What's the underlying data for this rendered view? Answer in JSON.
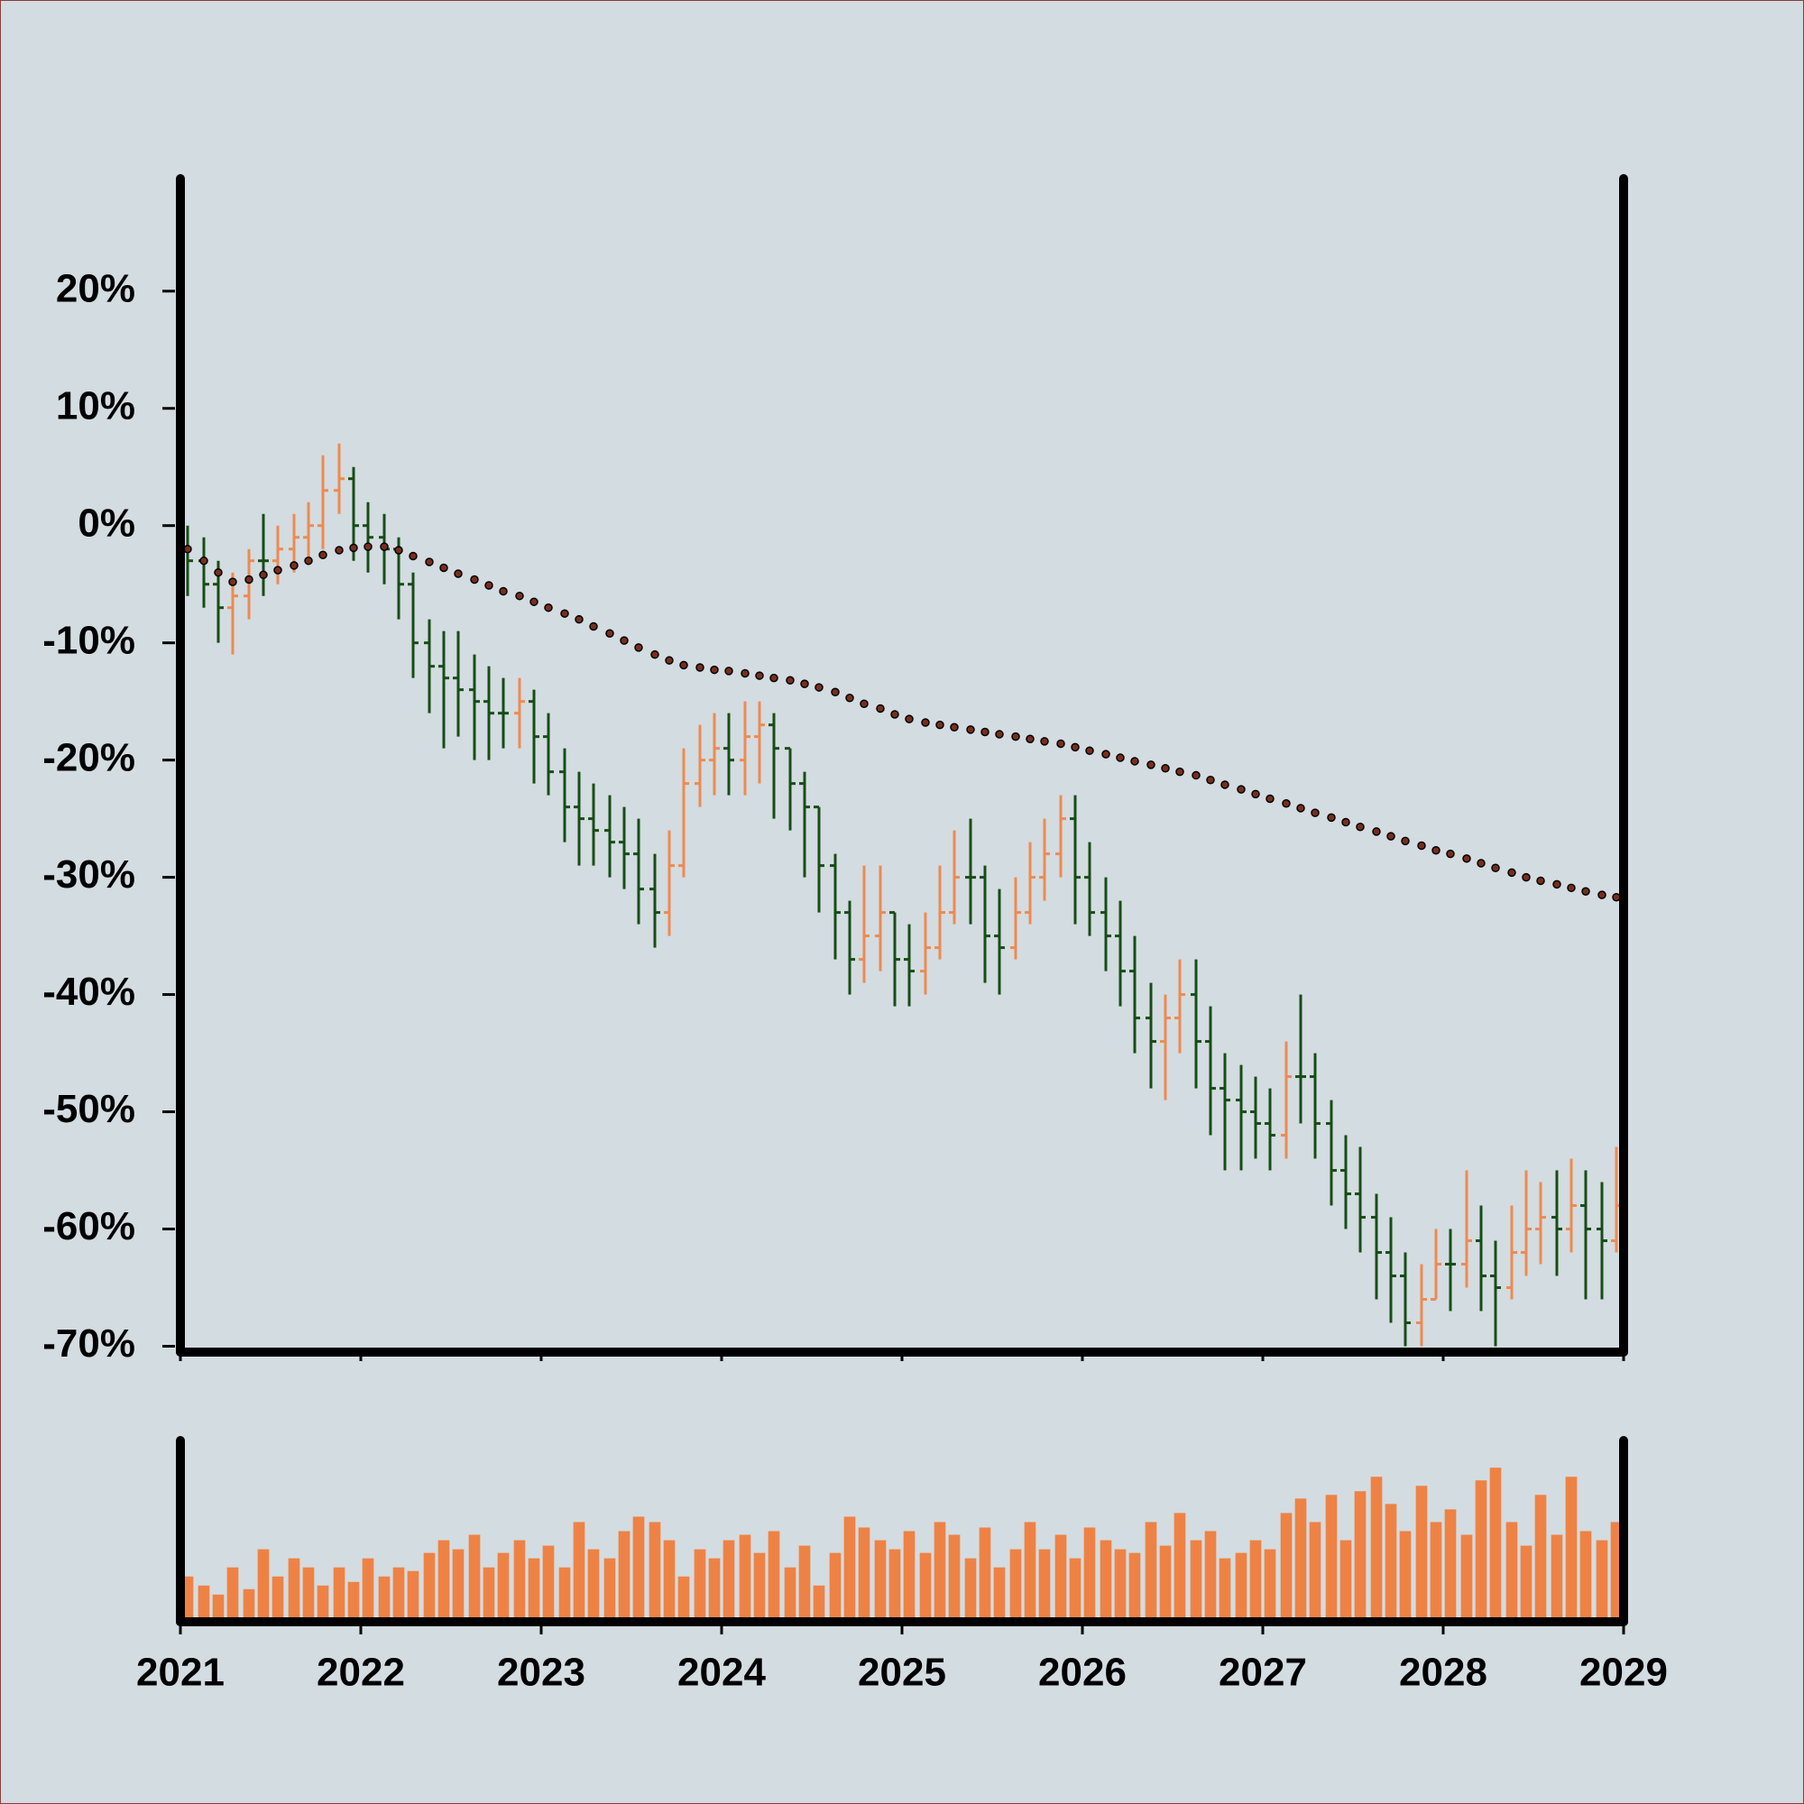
{
  "chart_data": {
    "type": "ohlc",
    "x": [
      2021.04,
      2021.13,
      2021.21,
      2021.29,
      2021.38,
      2021.46,
      2021.54,
      2021.63,
      2021.71,
      2021.79,
      2021.88,
      2021.96,
      2022.04,
      2022.13,
      2022.21,
      2022.29,
      2022.38,
      2022.46,
      2022.54,
      2022.63,
      2022.71,
      2022.79,
      2022.88,
      2022.96,
      2023.04,
      2023.13,
      2023.21,
      2023.29,
      2023.38,
      2023.46,
      2023.54,
      2023.63,
      2023.71,
      2023.79,
      2023.88,
      2023.96,
      2024.04,
      2024.13,
      2024.21,
      2024.29,
      2024.38,
      2024.46,
      2024.54,
      2024.63,
      2024.71,
      2024.79,
      2024.88,
      2024.96,
      2025.04,
      2025.13,
      2025.21,
      2025.29,
      2025.38,
      2025.46,
      2025.54,
      2025.63,
      2025.71,
      2025.79,
      2025.88,
      2025.96,
      2026.04,
      2026.13,
      2026.21,
      2026.29,
      2026.38,
      2026.46,
      2026.54,
      2026.63,
      2026.71,
      2026.79,
      2026.88,
      2026.96,
      2027.04,
      2027.13,
      2027.21,
      2027.29,
      2027.38,
      2027.46,
      2027.54,
      2027.63,
      2027.71,
      2027.79,
      2027.88,
      2027.96,
      2028.04,
      2028.13,
      2028.21,
      2028.29,
      2028.38,
      2028.46,
      2028.54,
      2028.63,
      2028.71,
      2028.79,
      2028.88,
      2028.96
    ],
    "open": [
      -2,
      -3,
      -5,
      -7,
      -6,
      -3,
      -3,
      -2,
      -1,
      0,
      3,
      4,
      0,
      -1,
      -2,
      -5,
      -10,
      -12,
      -13,
      -14,
      -15,
      -16,
      -16,
      -15,
      -18,
      -21,
      -24,
      -25,
      -26,
      -27,
      -28,
      -31,
      -33,
      -29,
      -22,
      -20,
      -19,
      -20,
      -18,
      -17,
      -19,
      -22,
      -24,
      -29,
      -33,
      -37,
      -35,
      -33,
      -37,
      -38,
      -36,
      -33,
      -30,
      -30,
      -35,
      -36,
      -33,
      -30,
      -28,
      -25,
      -30,
      -33,
      -35,
      -38,
      -42,
      -44,
      -42,
      -40,
      -44,
      -48,
      -49,
      -50,
      -51,
      -52,
      -47,
      -47,
      -51,
      -55,
      -57,
      -59,
      -62,
      -64,
      -68,
      -66,
      -63,
      -63,
      -61,
      -64,
      -65,
      -62,
      -60,
      -59,
      -60,
      -58,
      -60,
      -61
    ],
    "high": [
      0,
      -1,
      -3,
      -4,
      -2,
      1,
      0,
      1,
      2,
      6,
      7,
      5,
      2,
      1,
      -1,
      -4,
      -8,
      -9,
      -9,
      -11,
      -12,
      -13,
      -13,
      -14,
      -16,
      -19,
      -21,
      -22,
      -23,
      -24,
      -25,
      -28,
      -26,
      -19,
      -17,
      -16,
      -16,
      -15,
      -15,
      -16,
      -19,
      -21,
      -24,
      -28,
      -32,
      -29,
      -29,
      -33,
      -34,
      -33,
      -29,
      -26,
      -25,
      -29,
      -31,
      -30,
      -27,
      -25,
      -23,
      -23,
      -27,
      -30,
      -32,
      -35,
      -39,
      -40,
      -37,
      -37,
      -41,
      -45,
      -46,
      -47,
      -48,
      -44,
      -40,
      -45,
      -49,
      -52,
      -53,
      -57,
      -59,
      -62,
      -63,
      -60,
      -60,
      -55,
      -58,
      -61,
      -58,
      -55,
      -56,
      -55,
      -54,
      -55,
      -56,
      -53
    ],
    "low": [
      -6,
      -7,
      -10,
      -11,
      -8,
      -6,
      -5,
      -4,
      -3,
      -2,
      1,
      -3,
      -4,
      -5,
      -8,
      -13,
      -16,
      -19,
      -18,
      -20,
      -20,
      -19,
      -19,
      -22,
      -23,
      -27,
      -29,
      -29,
      -30,
      -31,
      -34,
      -36,
      -35,
      -30,
      -24,
      -23,
      -23,
      -23,
      -22,
      -25,
      -26,
      -30,
      -33,
      -37,
      -40,
      -39,
      -38,
      -41,
      -41,
      -40,
      -37,
      -34,
      -34,
      -39,
      -40,
      -37,
      -34,
      -32,
      -30,
      -34,
      -35,
      -38,
      -41,
      -45,
      -48,
      -49,
      -45,
      -48,
      -52,
      -55,
      -55,
      -54,
      -55,
      -54,
      -51,
      -54,
      -58,
      -60,
      -62,
      -66,
      -68,
      -70,
      -70,
      -66,
      -67,
      -65,
      -67,
      -70,
      -66,
      -64,
      -63,
      -64,
      -62,
      -66,
      -66,
      -62
    ],
    "close": [
      -3,
      -5,
      -7,
      -6,
      -3,
      -3,
      -2,
      -1,
      0,
      3,
      4,
      0,
      -1,
      -2,
      -5,
      -10,
      -12,
      -13,
      -14,
      -15,
      -16,
      -16,
      -15,
      -18,
      -21,
      -24,
      -25,
      -26,
      -27,
      -28,
      -31,
      -33,
      -29,
      -22,
      -20,
      -19,
      -20,
      -18,
      -17,
      -19,
      -22,
      -24,
      -29,
      -33,
      -37,
      -35,
      -33,
      -37,
      -38,
      -36,
      -33,
      -30,
      -30,
      -35,
      -36,
      -33,
      -30,
      -28,
      -25,
      -30,
      -33,
      -35,
      -38,
      -42,
      -44,
      -42,
      -40,
      -44,
      -48,
      -49,
      -50,
      -51,
      -52,
      -47,
      -47,
      -51,
      -55,
      -57,
      -59,
      -62,
      -64,
      -68,
      -66,
      -63,
      -63,
      -61,
      -64,
      -65,
      -62,
      -60,
      -59,
      -60,
      -58,
      -60,
      -61,
      -58
    ],
    "up_color": "#ee8a52",
    "down_color": "#174d17",
    "moving_average": {
      "color": "#7a2e1c",
      "values": [
        -2,
        -3,
        -4,
        -4.8,
        -4.6,
        -4.2,
        -3.8,
        -3.4,
        -3.0,
        -2.5,
        -2.1,
        -1.9,
        -1.8,
        -1.8,
        -2.1,
        -2.6,
        -3.1,
        -3.6,
        -4.1,
        -4.6,
        -5.1,
        -5.6,
        -6.0,
        -6.5,
        -7.0,
        -7.5,
        -8.0,
        -8.6,
        -9.2,
        -9.8,
        -10.4,
        -11.0,
        -11.5,
        -11.9,
        -12.1,
        -12.3,
        -12.4,
        -12.6,
        -12.8,
        -13.0,
        -13.2,
        -13.5,
        -13.8,
        -14.2,
        -14.7,
        -15.2,
        -15.6,
        -16.1,
        -16.5,
        -16.8,
        -17.0,
        -17.2,
        -17.4,
        -17.6,
        -17.8,
        -18.0,
        -18.2,
        -18.4,
        -18.6,
        -18.9,
        -19.2,
        -19.5,
        -19.8,
        -20.1,
        -20.4,
        -20.7,
        -21.0,
        -21.3,
        -21.7,
        -22.1,
        -22.5,
        -22.9,
        -23.3,
        -23.7,
        -24.1,
        -24.5,
        -24.9,
        -25.3,
        -25.7,
        -26.1,
        -26.5,
        -26.9,
        -27.3,
        -27.7,
        -28.0,
        -28.4,
        -28.8,
        -29.2,
        -29.6,
        -30.0,
        -30.3,
        -30.6,
        -30.9,
        -31.2,
        -31.5,
        -31.7
      ]
    },
    "volume": {
      "color": "#ee8245",
      "ylim": [
        0,
        100
      ],
      "values": [
        25,
        20,
        15,
        30,
        18,
        40,
        25,
        35,
        30,
        20,
        30,
        22,
        35,
        25,
        30,
        28,
        38,
        45,
        40,
        48,
        30,
        38,
        45,
        35,
        42,
        30,
        55,
        40,
        35,
        50,
        58,
        55,
        45,
        25,
        40,
        35,
        45,
        48,
        38,
        50,
        30,
        42,
        20,
        38,
        58,
        52,
        45,
        40,
        50,
        38,
        55,
        48,
        35,
        52,
        30,
        40,
        55,
        40,
        48,
        35,
        52,
        45,
        40,
        38,
        55,
        42,
        60,
        45,
        50,
        35,
        38,
        45,
        40,
        60,
        68,
        55,
        70,
        45,
        72,
        80,
        65,
        50,
        75,
        55,
        62,
        48,
        78,
        85,
        55,
        42,
        70,
        48,
        80,
        50,
        45,
        55
      ]
    },
    "xlim": [
      2021,
      2029
    ],
    "xticks": [
      2021,
      2022,
      2023,
      2024,
      2025,
      2026,
      2027,
      2028,
      2029
    ],
    "ylim": [
      -70.5,
      29.6
    ],
    "yticks": [
      {
        "value": -70,
        "label": "-70%"
      },
      {
        "value": -60,
        "label": "-60%"
      },
      {
        "value": -50,
        "label": "-50%"
      },
      {
        "value": -40,
        "label": "-40%"
      },
      {
        "value": -30,
        "label": "-30%"
      },
      {
        "value": -20,
        "label": "-20%"
      },
      {
        "value": -10,
        "label": "-10%"
      },
      {
        "value": 0,
        "label": "0%"
      },
      {
        "value": 10,
        "label": "10%"
      },
      {
        "value": 20,
        "label": "20%"
      }
    ]
  }
}
